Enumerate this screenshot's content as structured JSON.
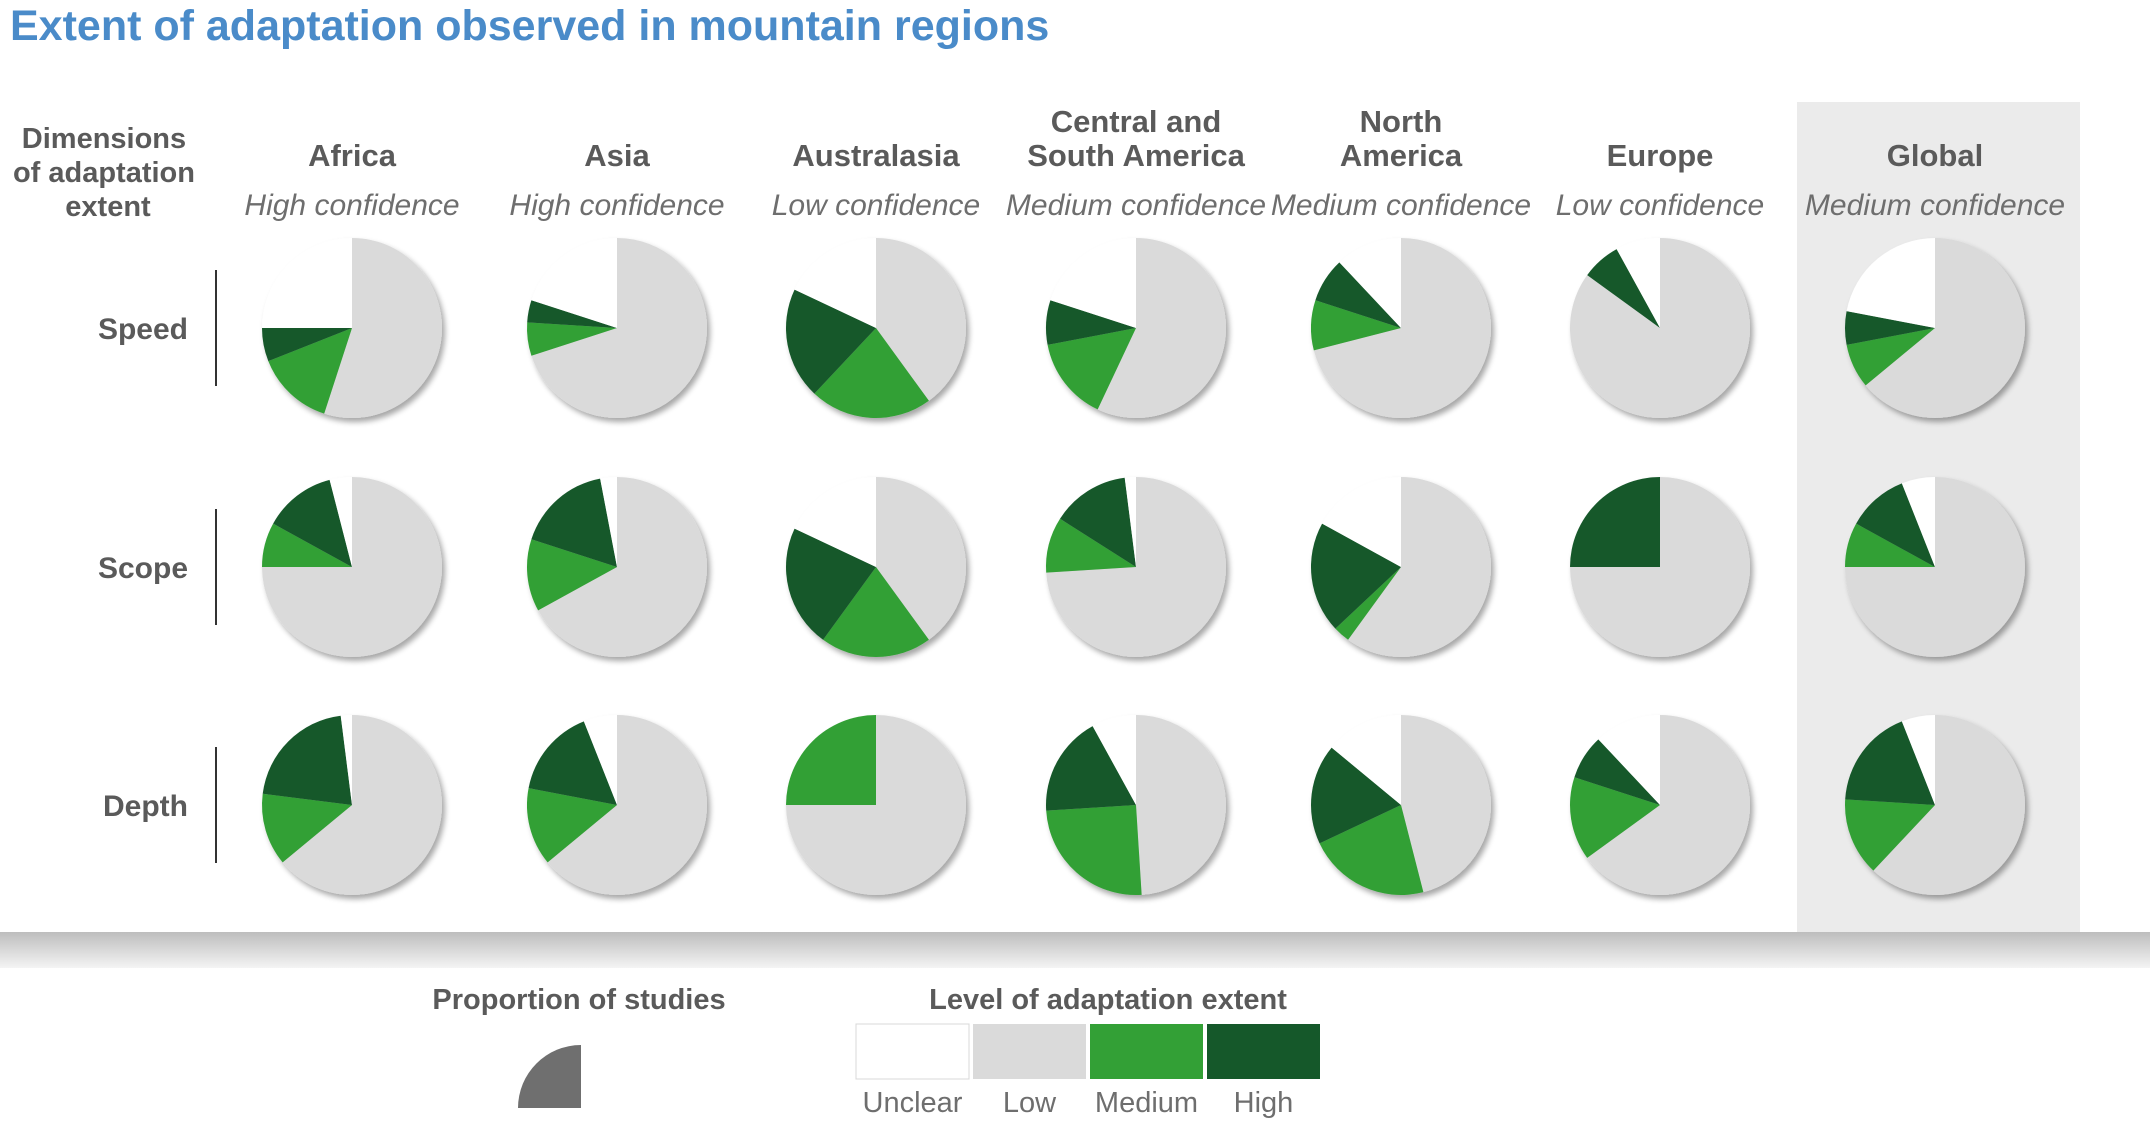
{
  "title": "Extent of adaptation observed in mountain regions",
  "colors": {
    "title": "#4a8bc9",
    "unclear": "#ffffff",
    "low": "#dadada",
    "medium": "#33a036",
    "high": "#15582a",
    "global_panel": "#ebebeb",
    "text": "#5a5a5a",
    "legend_quarter": "#6f6f6f"
  },
  "row_header": [
    "Dimensions",
    "of adaptation",
    "extent"
  ],
  "legend": {
    "proportion_title": "Proportion of studies",
    "level_title": "Level of adaptation extent",
    "categories": [
      "Unclear",
      "Low",
      "Medium",
      "High"
    ]
  },
  "chart_data": {
    "type": "pie",
    "rows": [
      "Speed",
      "Scope",
      "Depth"
    ],
    "columns": [
      {
        "name": [
          "Africa"
        ],
        "confidence": "High confidence"
      },
      {
        "name": [
          "Asia"
        ],
        "confidence": "High confidence"
      },
      {
        "name": [
          "Australasia"
        ],
        "confidence": "Low confidence"
      },
      {
        "name": [
          "Central and",
          "South America"
        ],
        "confidence": "Medium confidence"
      },
      {
        "name": [
          "North",
          "America"
        ],
        "confidence": "Medium confidence"
      },
      {
        "name": [
          "Europe"
        ],
        "confidence": "Low confidence"
      },
      {
        "name": [
          "Global"
        ],
        "confidence": "Medium confidence"
      }
    ],
    "slice_order": [
      "Low",
      "Medium",
      "High",
      "Unclear"
    ],
    "values": [
      [
        {
          "Low": 55,
          "Medium": 14,
          "High": 6,
          "Unclear": 25
        },
        {
          "Low": 70,
          "Medium": 6,
          "High": 4,
          "Unclear": 20
        },
        {
          "Low": 40,
          "Medium": 22,
          "High": 20,
          "Unclear": 18
        },
        {
          "Low": 57,
          "Medium": 15,
          "High": 8,
          "Unclear": 20
        },
        {
          "Low": 71,
          "Medium": 9,
          "High": 8,
          "Unclear": 12
        },
        {
          "Low": 85,
          "Medium": 0,
          "High": 7,
          "Unclear": 8
        },
        {
          "Low": 64,
          "Medium": 8,
          "High": 6,
          "Unclear": 22
        }
      ],
      [
        {
          "Low": 75,
          "Medium": 8,
          "High": 13,
          "Unclear": 4
        },
        {
          "Low": 67,
          "Medium": 13,
          "High": 17,
          "Unclear": 3
        },
        {
          "Low": 40,
          "Medium": 20,
          "High": 22,
          "Unclear": 18
        },
        {
          "Low": 74,
          "Medium": 10,
          "High": 14,
          "Unclear": 2
        },
        {
          "Low": 60,
          "Medium": 3,
          "High": 20,
          "Unclear": 17
        },
        {
          "Low": 75,
          "Medium": 0,
          "High": 25,
          "Unclear": 0
        },
        {
          "Low": 75,
          "Medium": 8,
          "High": 11,
          "Unclear": 6
        }
      ],
      [
        {
          "Low": 64,
          "Medium": 13,
          "High": 21,
          "Unclear": 2
        },
        {
          "Low": 64,
          "Medium": 14,
          "High": 16,
          "Unclear": 6
        },
        {
          "Low": 75,
          "Medium": 25,
          "High": 0,
          "Unclear": 0
        },
        {
          "Low": 49,
          "Medium": 25,
          "High": 18,
          "Unclear": 8
        },
        {
          "Low": 46,
          "Medium": 22,
          "High": 18,
          "Unclear": 14
        },
        {
          "Low": 65,
          "Medium": 15,
          "High": 8,
          "Unclear": 12
        },
        {
          "Low": 62,
          "Medium": 14,
          "High": 18,
          "Unclear": 6
        }
      ]
    ]
  }
}
